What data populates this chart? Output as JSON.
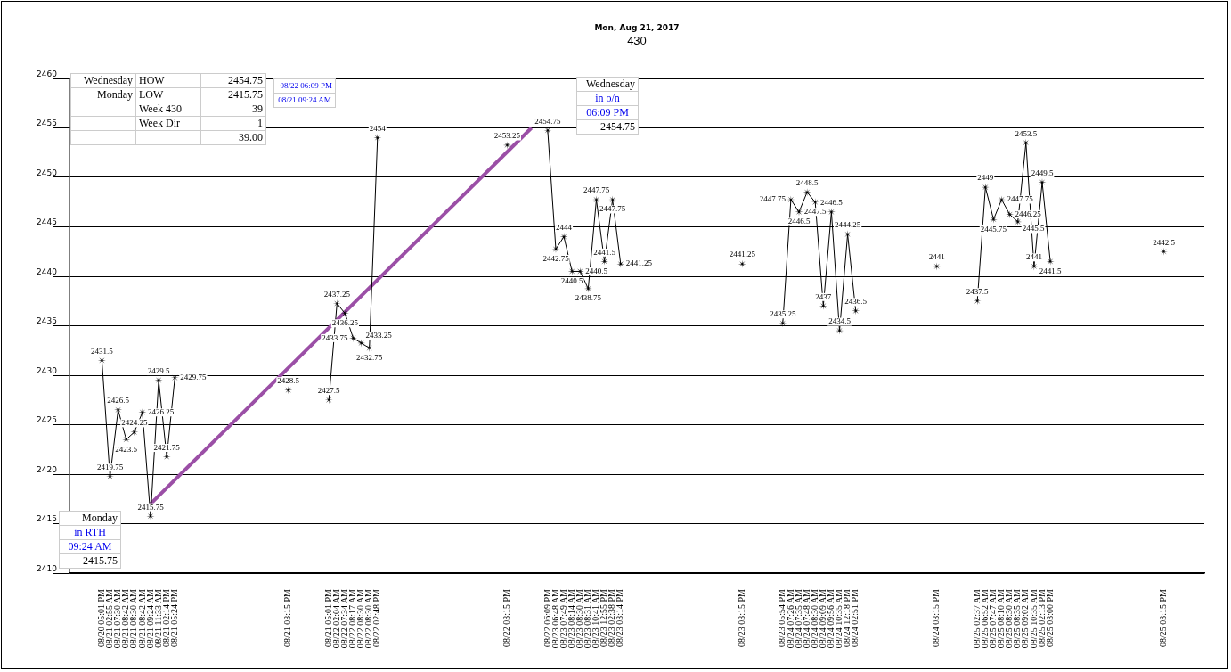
{
  "chart_data": {
    "type": "line",
    "title": "Mon, Aug 21, 2017",
    "subtitle": "430",
    "categories": [
      null,
      null,
      null,
      null,
      "08/20 05:01 PM",
      "08/21 02:55 AM",
      "08/21 07:30 AM",
      "08/21 08:42 AM",
      "08/21 08:30 AM",
      "08/21 08:42 AM",
      "08/21 09:24 AM",
      "08/21 11:33 AM",
      "08/21 02:14 PM",
      "08/21 05:24 PM",
      null,
      null,
      null,
      null,
      null,
      null,
      null,
      null,
      null,
      null,
      null,
      null,
      null,
      "08/21 03:15 PM",
      null,
      null,
      null,
      null,
      "08/21 05:01 PM",
      "08/22 02:04 AM",
      "08/22 07:34 AM",
      "08/22 08:17 AM",
      "08/22 08:30 AM",
      "08/22 08:30 AM",
      "08/22 02:48 PM",
      null,
      null,
      null,
      null,
      null,
      null,
      null,
      null,
      null,
      null,
      null,
      null,
      null,
      null,
      null,
      "08/22 03:15 PM",
      null,
      null,
      null,
      null,
      "08/22 06:09 PM",
      "08/23 06:48 AM",
      "08/23 07:49 AM",
      "08/23 08:14 AM",
      "08/23 08:30 AM",
      "08/23 08:31 AM",
      "08/23 10:41 AM",
      "08/23 12:55 PM",
      "08/23 02:38 PM",
      "08/23 03:14 PM",
      null,
      null,
      null,
      null,
      null,
      null,
      null,
      null,
      null,
      null,
      null,
      null,
      null,
      null,
      "08/23 03:15 PM",
      null,
      null,
      null,
      null,
      "08/23 05:54 PM",
      "08/24 07:26 AM",
      "08/24 07:35 AM",
      "08/24 07:48 AM",
      "08/24 08:30 AM",
      "08/24 09:09 AM",
      "08/24 09:56 AM",
      "08/24 10:35 AM",
      "08/24 12:18 PM",
      "08/24 02:51 PM",
      null,
      null,
      null,
      null,
      null,
      null,
      null,
      null,
      null,
      "08/24 03:15 PM",
      null,
      null,
      null,
      null,
      "08/25 02:37 AM",
      "08/25 06:52 AM",
      "08/25 07:47 AM",
      "08/25 08:10 AM",
      "08/25 08:30 AM",
      "08/25 08:35 AM",
      "08/25 09:02 AM",
      "08/25 10:35 AM",
      "08/25 02:13 PM",
      "08/25 03:00 PM",
      null,
      null,
      null,
      null,
      null,
      null,
      null,
      null,
      null,
      null,
      null,
      null,
      null,
      "08/25 03:15 PM",
      null,
      null,
      null,
      null,
      null
    ],
    "series": [
      {
        "color": "#000000",
        "marker": "star",
        "data_labels": true,
        "values": [
          null,
          null,
          null,
          null,
          2431.5,
          2419.75,
          2426.5,
          2423.5,
          2424.25,
          2426.25,
          2415.75,
          2429.5,
          2421.75,
          2429.75,
          null,
          null,
          null,
          null,
          null,
          null,
          null,
          null,
          null,
          null,
          null,
          null,
          null,
          2428.5,
          null,
          null,
          null,
          null,
          2427.5,
          2437.25,
          2436.25,
          2433.75,
          2433.25,
          2432.75,
          2454,
          null,
          null,
          null,
          null,
          null,
          null,
          null,
          null,
          null,
          null,
          null,
          null,
          null,
          null,
          null,
          2453.25,
          null,
          null,
          null,
          null,
          2454.75,
          2442.75,
          2444,
          2440.5,
          2440.5,
          2438.75,
          2447.75,
          2441.5,
          2447.75,
          2441.25,
          null,
          null,
          null,
          null,
          null,
          null,
          null,
          null,
          null,
          null,
          null,
          null,
          null,
          null,
          2441.25,
          null,
          null,
          null,
          null,
          2435.25,
          2447.75,
          2446.5,
          2448.5,
          2447.5,
          2437,
          2446.5,
          2434.5,
          2444.25,
          2436.5,
          null,
          null,
          null,
          null,
          null,
          null,
          null,
          null,
          null,
          2441,
          null,
          null,
          null,
          null,
          2437.5,
          2449,
          2445.75,
          2447.75,
          2446.25,
          2445.5,
          2453.5,
          2441,
          2449.5,
          2441.5,
          null,
          null,
          null,
          null,
          null,
          null,
          null,
          null,
          null,
          null,
          null,
          null,
          null,
          2442.5,
          null,
          null,
          null,
          null,
          null
        ]
      },
      {
        "color": "#9b4fa6",
        "marker": "none",
        "values": [
          null,
          null,
          null,
          null,
          null,
          null,
          null,
          null,
          null,
          null,
          2417,
          null,
          null,
          null,
          null,
          null,
          null,
          null,
          null,
          null,
          null,
          null,
          null,
          null,
          null,
          null,
          null,
          null,
          null,
          null,
          null,
          null,
          null,
          null,
          null,
          null,
          null,
          null,
          null,
          null,
          null,
          null,
          null,
          null,
          null,
          null,
          null,
          null,
          null,
          null,
          null,
          null,
          null,
          null,
          null,
          null,
          null,
          2455,
          null,
          null,
          null,
          null,
          null,
          null,
          null,
          null,
          null,
          null,
          null,
          null,
          null,
          null,
          null,
          null,
          null,
          null,
          null,
          null,
          null,
          null,
          null,
          null,
          null,
          null,
          null,
          null,
          null,
          null,
          null,
          null,
          null,
          null,
          null,
          null,
          null,
          null,
          null,
          null,
          null,
          null,
          null,
          null,
          null,
          null,
          null,
          null,
          null,
          null,
          null,
          null,
          null,
          null,
          null,
          null,
          null,
          null,
          null,
          null,
          null,
          null,
          null,
          null,
          null,
          null,
          null,
          null,
          null,
          null,
          null,
          null,
          null,
          null,
          null,
          null,
          null,
          null,
          null,
          null,
          null,
          null,
          null
        ]
      }
    ],
    "ylim": [
      2410,
      2460
    ],
    "yticks": [
      2410,
      2415,
      2420,
      2425,
      2430,
      2435,
      2440,
      2445,
      2450,
      2455,
      2460
    ],
    "grid": "y",
    "legend": false,
    "annotations": [
      "Wednesday\tHOW\t2454.75\nMonday\tLOW\t2415.75\n\tWeek 430\t39\n\tWeek Dir\t1\n\t\t39.00",
      "08/22 06:09 PM\n08/21 09:24 AM",
      "Wednesday\nin o/n\n06:09 PM\n2454.75",
      "Monday\nin RTH\n09:24 AM\n2415.75"
    ]
  }
}
